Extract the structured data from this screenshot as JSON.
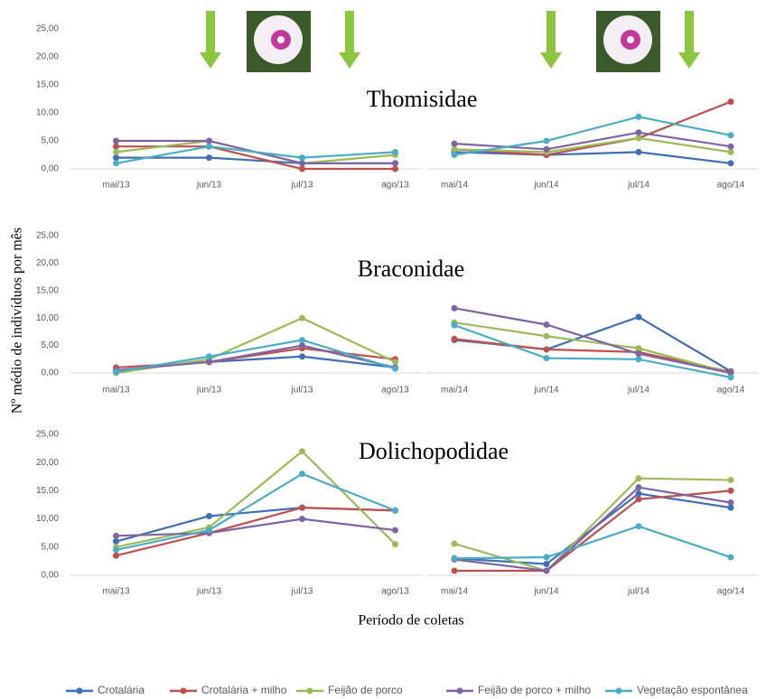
{
  "figure": {
    "ylabel": "Nº médio de indivíduos por mês",
    "xlabel": "Período de coletas"
  },
  "chart_data": [
    {
      "type": "line",
      "title": "Thomisidae",
      "categories": [
        "mai/13",
        "jun/13",
        "jul/13",
        "ago/13"
      ],
      "ylim": [
        0,
        25
      ],
      "yticks": [
        {
          "value": 0,
          "label": "0,00"
        },
        {
          "value": 5,
          "label": "5,00"
        },
        {
          "value": 10,
          "label": "10,00"
        },
        {
          "value": 15,
          "label": "15,00"
        },
        {
          "value": 20,
          "label": "20,00"
        },
        {
          "value": 25,
          "label": "25,00"
        }
      ],
      "series": [
        {
          "name": "Crotalária",
          "color": "#3f6fb5",
          "values": [
            2,
            2,
            1,
            1
          ]
        },
        {
          "name": "Crotalária + milho",
          "color": "#c0504d",
          "values": [
            4,
            4,
            0,
            0
          ]
        },
        {
          "name": "Feijão de porco",
          "color": "#9bbb59",
          "values": [
            3,
            5,
            1,
            2.5
          ]
        },
        {
          "name": "Feijão de porco  + milho",
          "color": "#8064a2",
          "values": [
            5,
            5,
            1,
            1
          ]
        },
        {
          "name": "Vegetação espontânea",
          "color": "#4bacc6",
          "values": [
            1,
            4,
            2,
            3
          ]
        }
      ]
    },
    {
      "type": "line",
      "categories": [
        "mai/14",
        "jun/14",
        "jul/14",
        "ago/14"
      ],
      "ylim": [
        0,
        25
      ],
      "series": [
        {
          "name": "Crotalária",
          "color": "#3f6fb5",
          "values": [
            3,
            2.5,
            3,
            1
          ]
        },
        {
          "name": "Crotalária + milho",
          "color": "#c0504d",
          "values": [
            3.5,
            2.5,
            5.5,
            12
          ]
        },
        {
          "name": "Feijão de porco",
          "color": "#9bbb59",
          "values": [
            3.5,
            3,
            5.5,
            3
          ]
        },
        {
          "name": "Feijão de porco  + milho",
          "color": "#8064a2",
          "values": [
            4.5,
            3.5,
            6.5,
            4
          ]
        },
        {
          "name": "Vegetação espontânea",
          "color": "#4bacc6",
          "values": [
            2.5,
            5,
            9.3,
            6
          ]
        }
      ]
    },
    {
      "type": "line",
      "title": "Braconidae",
      "categories": [
        "mai/13",
        "jun/13",
        "jul/13",
        "ago/13"
      ],
      "ylim": [
        0,
        25
      ],
      "yticks": [
        {
          "value": 0,
          "label": "0,00"
        },
        {
          "value": 5,
          "label": "5,00"
        },
        {
          "value": 10,
          "label": "10,00"
        },
        {
          "value": 15,
          "label": "15,00"
        },
        {
          "value": 20,
          "label": "20,00"
        },
        {
          "value": 25,
          "label": "25,00"
        }
      ],
      "series": [
        {
          "name": "Crotalária",
          "color": "#3f6fb5",
          "values": [
            0.5,
            2,
            3,
            1
          ]
        },
        {
          "name": "Crotalária + milho",
          "color": "#c0504d",
          "values": [
            1,
            2,
            4.5,
            2.5
          ]
        },
        {
          "name": "Feijão de porco",
          "color": "#9bbb59",
          "values": [
            0,
            2.5,
            10,
            2
          ]
        },
        {
          "name": "Feijão de porco  + milho",
          "color": "#8064a2",
          "values": [
            0.5,
            2,
            5,
            1
          ]
        },
        {
          "name": "Vegetação espontânea",
          "color": "#4bacc6",
          "values": [
            0.2,
            3,
            6,
            0.8
          ]
        }
      ]
    },
    {
      "type": "line",
      "categories": [
        "mai/14",
        "jun/14",
        "jul/14",
        "ago/14"
      ],
      "ylim": [
        0,
        25
      ],
      "series": [
        {
          "name": "Crotalária",
          "color": "#3f6fb5",
          "values": [
            6,
            4.3,
            10.2,
            0.3
          ]
        },
        {
          "name": "Crotalária + milho",
          "color": "#c0504d",
          "values": [
            6.2,
            4.3,
            3.8,
            0.2
          ]
        },
        {
          "name": "Feijão de porco",
          "color": "#9bbb59",
          "values": [
            9.2,
            6.7,
            4.5,
            0
          ]
        },
        {
          "name": "Feijão de porco  + milho",
          "color": "#8064a2",
          "values": [
            11.8,
            8.8,
            3.5,
            0
          ]
        },
        {
          "name": "Vegetação espontânea",
          "color": "#4bacc6",
          "values": [
            8.7,
            2.7,
            2.5,
            -0.8
          ]
        }
      ]
    },
    {
      "type": "line",
      "title": "Dolichopodidae",
      "categories": [
        "mai/13",
        "jun/13",
        "jul/13",
        "ago/13"
      ],
      "ylim": [
        0,
        25
      ],
      "yticks": [
        {
          "value": 0,
          "label": "0,00"
        },
        {
          "value": 5,
          "label": "5,00"
        },
        {
          "value": 10,
          "label": "10,00"
        },
        {
          "value": 15,
          "label": "15,00"
        },
        {
          "value": 20,
          "label": "20,00"
        },
        {
          "value": 25,
          "label": "25,00"
        }
      ],
      "series": [
        {
          "name": "Crotalária",
          "color": "#3f6fb5",
          "values": [
            6,
            10.5,
            12,
            11.5
          ]
        },
        {
          "name": "Crotalária + milho",
          "color": "#c0504d",
          "values": [
            3.5,
            7.5,
            12,
            11.5
          ]
        },
        {
          "name": "Feijão de porco",
          "color": "#9bbb59",
          "values": [
            5,
            8.5,
            22,
            5.5
          ]
        },
        {
          "name": "Feijão de porco  + milho",
          "color": "#8064a2",
          "values": [
            7,
            7.5,
            10,
            8
          ]
        },
        {
          "name": "Vegetação espontânea",
          "color": "#4bacc6",
          "values": [
            4.5,
            8,
            18,
            11.5
          ]
        }
      ]
    },
    {
      "type": "line",
      "categories": [
        "mai/14",
        "jun/14",
        "jul/14",
        "ago/14"
      ],
      "ylim": [
        0,
        25
      ],
      "series": [
        {
          "name": "Crotalária",
          "color": "#3f6fb5",
          "values": [
            3,
            2,
            14.5,
            12
          ]
        },
        {
          "name": "Crotalária + milho",
          "color": "#c0504d",
          "values": [
            0.8,
            0.8,
            13.5,
            15
          ]
        },
        {
          "name": "Feijão de porco",
          "color": "#9bbb59",
          "values": [
            5.6,
            0.8,
            17.2,
            16.9
          ]
        },
        {
          "name": "Feijão de porco  + milho",
          "color": "#8064a2",
          "values": [
            2.8,
            0.8,
            15.6,
            12.9
          ]
        },
        {
          "name": "Vegetação espontânea",
          "color": "#4bacc6",
          "values": [
            3,
            3.2,
            8.7,
            3.2
          ]
        }
      ]
    }
  ]
}
